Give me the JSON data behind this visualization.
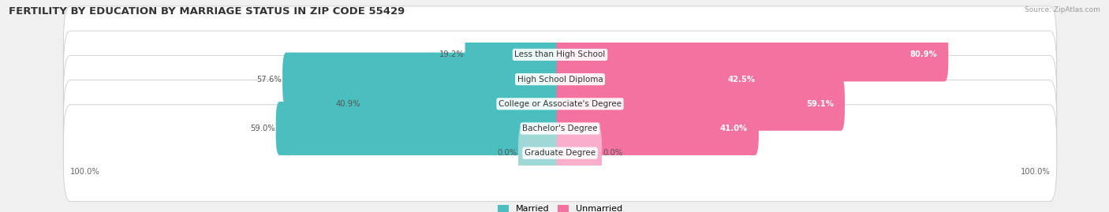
{
  "title": "FERTILITY BY EDUCATION BY MARRIAGE STATUS IN ZIP CODE 55429",
  "source": "Source: ZipAtlas.com",
  "categories": [
    "Less than High School",
    "High School Diploma",
    "College or Associate's Degree",
    "Bachelor's Degree",
    "Graduate Degree"
  ],
  "married": [
    19.2,
    57.6,
    40.9,
    59.0,
    0.0
  ],
  "unmarried": [
    80.9,
    42.5,
    59.1,
    41.0,
    0.0
  ],
  "married_color": "#4BBFBF",
  "unmarried_color": "#F472A0",
  "married_zero_color": "#A0D8D8",
  "unmarried_zero_color": "#F9AECB",
  "row_bg_color": "#ffffff",
  "row_border_color": "#cccccc",
  "fig_bg_color": "#f0f0f0",
  "bar_height": 0.58,
  "title_fontsize": 9.5,
  "label_fontsize": 7.5,
  "value_fontsize": 7.2,
  "legend_fontsize": 8.0,
  "axis_max": 100,
  "zero_bar_width": 8
}
